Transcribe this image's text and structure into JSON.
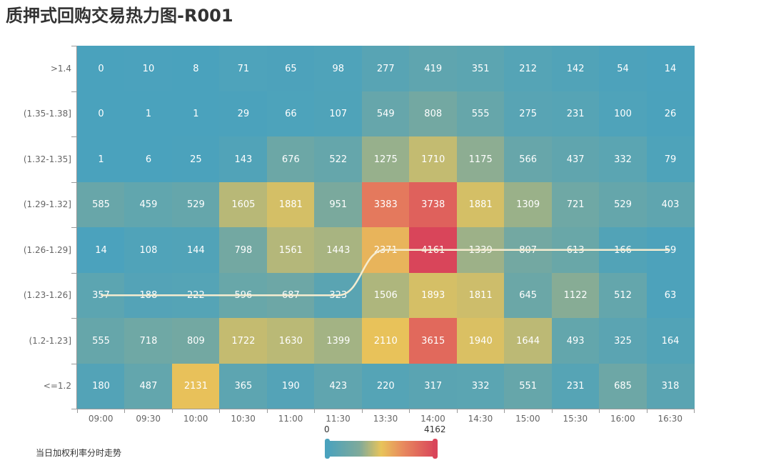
{
  "title": "质押式回购交易热力图-R001",
  "chart_data": {
    "type": "heatmap",
    "title": "质押式回购交易热力图-R001",
    "x_categories": [
      "09:00",
      "09:30",
      "10:00",
      "10:30",
      "11:00",
      "11:30",
      "13:30",
      "14:00",
      "14:30",
      "15:00",
      "15:30",
      "16:00",
      "16:30"
    ],
    "y_categories": [
      ">1.4",
      "(1.35-1.38]",
      "(1.32-1.35]",
      "(1.29-1.32]",
      "(1.26-1.29]",
      "(1.23-1.26]",
      "(1.2-1.23]",
      "<=1.2"
    ],
    "values": [
      [
        0,
        10,
        8,
        71,
        65,
        98,
        277,
        419,
        351,
        212,
        142,
        54,
        14
      ],
      [
        0,
        1,
        1,
        29,
        66,
        107,
        549,
        808,
        555,
        275,
        231,
        100,
        26
      ],
      [
        1,
        6,
        25,
        143,
        676,
        522,
        1275,
        1710,
        1175,
        566,
        437,
        332,
        79
      ],
      [
        585,
        459,
        529,
        1605,
        1881,
        951,
        3383,
        3738,
        1881,
        1309,
        721,
        529,
        403
      ],
      [
        14,
        108,
        144,
        798,
        1561,
        1443,
        2371,
        4161,
        1339,
        807,
        613,
        166,
        59
      ],
      [
        357,
        188,
        222,
        596,
        687,
        323,
        1506,
        1893,
        1811,
        645,
        1122,
        512,
        63
      ],
      [
        555,
        718,
        809,
        1722,
        1630,
        1399,
        2110,
        3615,
        1940,
        1644,
        493,
        325,
        164
      ],
      [
        180,
        487,
        2131,
        365,
        190,
        423,
        220,
        317,
        332,
        551,
        231,
        685,
        318
      ]
    ],
    "visual_map": {
      "min": 0,
      "max": 4162,
      "colors": [
        "#4aa2bd",
        "#7faa9a",
        "#e8c45a",
        "#e88a5e",
        "#d9455a"
      ]
    },
    "trend_line": {
      "name": "当日加权利率分时走势",
      "row_index_per_column": [
        5,
        5,
        5,
        5,
        5,
        5,
        4,
        4,
        4,
        4,
        4,
        4,
        4
      ],
      "color": "#f5ecd0"
    },
    "grid": false,
    "legend_position": "bottom"
  },
  "legend": {
    "trend_label": "当日加权利率分时走势"
  },
  "visual_map": {
    "min_label": "0",
    "max_label": "4162"
  }
}
